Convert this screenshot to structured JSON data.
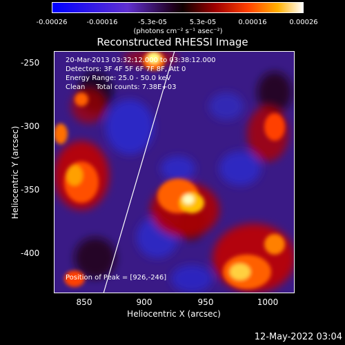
{
  "colorbar": {
    "ticks": [
      "-0.00026",
      "-0.00016",
      "-5.3e-05",
      "5.3e-05",
      "0.00016",
      "0.00026"
    ],
    "unit": "(photons cm⁻² s⁻¹ asec⁻²)"
  },
  "title": "Reconstructed RHESSI Image",
  "info": {
    "time": "20-Mar-2013 03:32:12.000 to 03:38:12.000",
    "detectors": "Detectors: 3F 4F 5F 6F 7F 8F, Att 0",
    "energy": "Energy Range: 25.0 - 50.0 keV",
    "clean": "Clean     Total counts: 7.38E+03"
  },
  "peak": "Position of Peak = [926,-246]",
  "axes": {
    "xlabel": "Heliocentric X (arcsec)",
    "ylabel": "Heliocentric Y (arcsec)",
    "xticks": [
      "850",
      "900",
      "950",
      "1000"
    ],
    "yticks": [
      "-250",
      "-300",
      "-350",
      "-400"
    ]
  },
  "footer": "12-May-2022 03:04"
}
